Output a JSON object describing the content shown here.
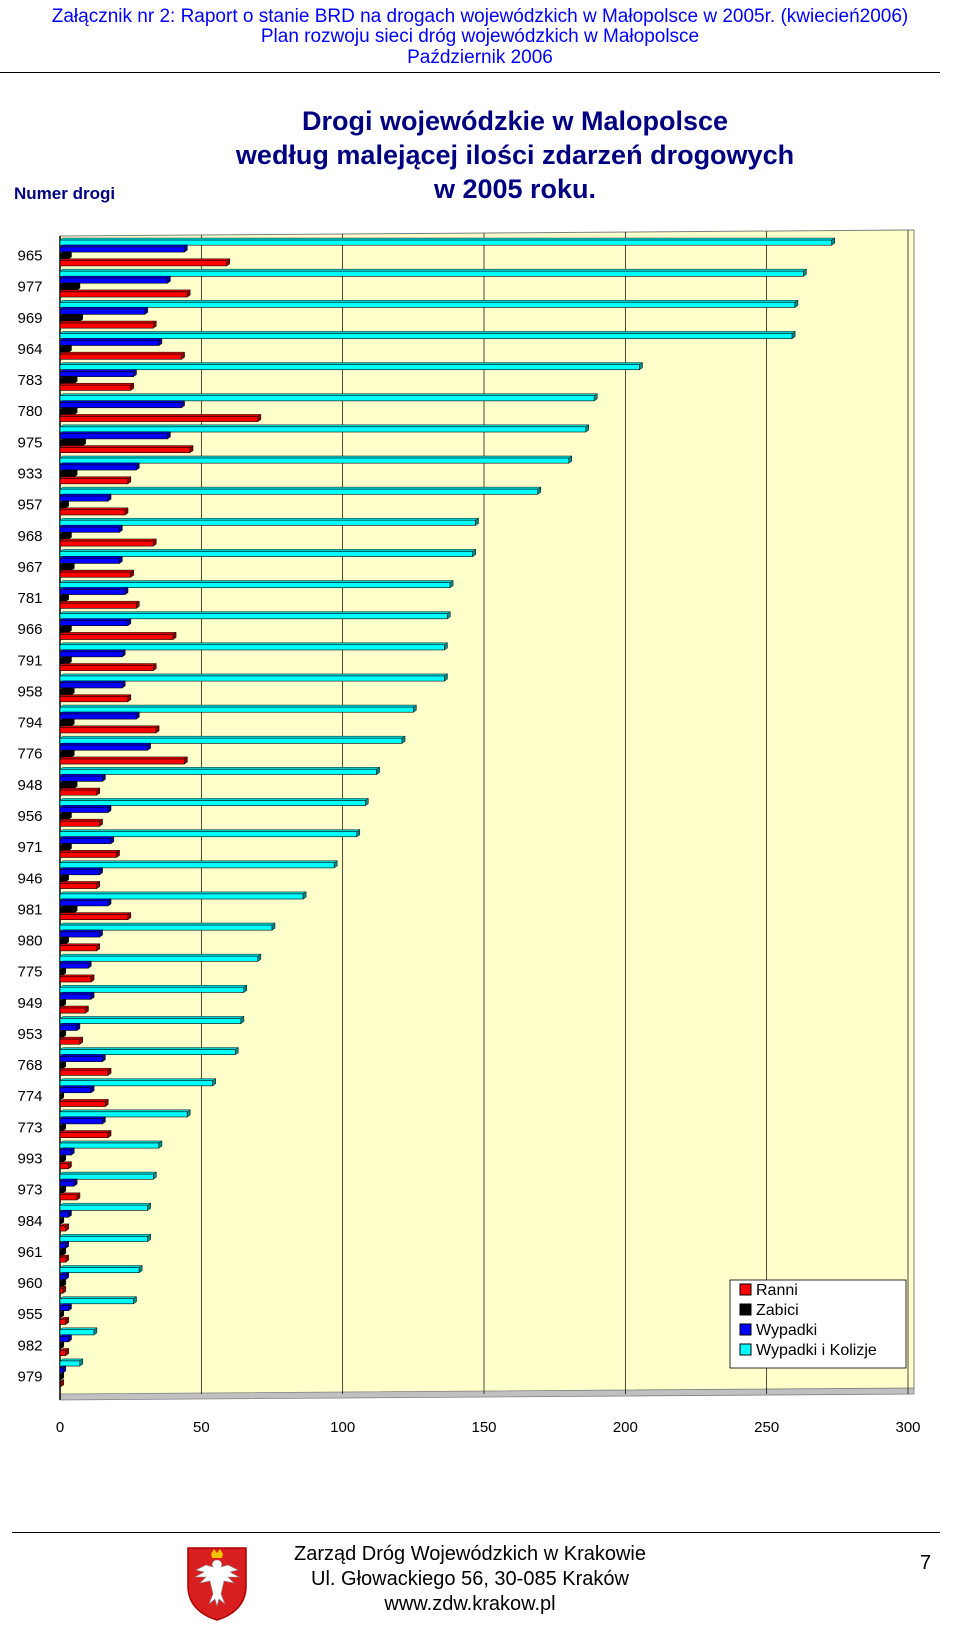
{
  "header": {
    "line1": "Załącznik nr 2: Raport o stanie BRD na drogach wojewódzkich w Małopolsce w 2005r. (kwiecień2006)",
    "line2": "Plan rozwoju sieci dróg wojewódzkich w Małopolsce",
    "line3": "Październik 2006"
  },
  "road_number_label": "Numer drogi",
  "chart_data": {
    "type": "bar",
    "orientation": "horizontal",
    "title": [
      "Drogi wojewódzkie w Malopolsce",
      "według malejącej ilości zdarzeń drogowych",
      "w 2005 roku."
    ],
    "ylabel": "Numer drogi",
    "xlim": [
      0,
      300
    ],
    "xticks": [
      "0",
      "50",
      "100",
      "150",
      "200",
      "250",
      "300"
    ],
    "categories": [
      "965",
      "977",
      "969",
      "964",
      "783",
      "780",
      "975",
      "933",
      "957",
      "968",
      "967",
      "781",
      "966",
      "791",
      "958",
      "794",
      "776",
      "948",
      "956",
      "971",
      "946",
      "981",
      "980",
      "775",
      "949",
      "953",
      "768",
      "774",
      "773",
      "993",
      "973",
      "984",
      "961",
      "960",
      "955",
      "982",
      "979"
    ],
    "series": [
      {
        "name": "Ranni",
        "color": "#ff0000",
        "values": [
          59,
          45,
          33,
          43,
          25,
          70,
          46,
          24,
          23,
          33,
          25,
          27,
          40,
          33,
          24,
          34,
          44,
          13,
          14,
          20,
          13,
          24,
          13,
          11,
          9,
          7,
          17,
          16,
          17,
          3,
          6,
          2,
          2,
          1,
          2,
          2,
          0
        ]
      },
      {
        "name": "Zabici",
        "color": "#000000",
        "values": [
          3,
          6,
          7,
          3,
          5,
          5,
          8,
          5,
          2,
          3,
          4,
          2,
          3,
          3,
          4,
          4,
          4,
          5,
          3,
          3,
          2,
          5,
          2,
          1,
          1,
          1,
          1,
          0,
          1,
          1,
          1,
          0,
          1,
          1,
          0,
          0,
          0
        ]
      },
      {
        "name": "Wypadki",
        "color": "#0000ff",
        "values": [
          44,
          38,
          30,
          35,
          26,
          43,
          38,
          27,
          17,
          21,
          21,
          23,
          24,
          22,
          22,
          27,
          31,
          15,
          17,
          18,
          14,
          17,
          14,
          10,
          11,
          6,
          15,
          11,
          15,
          4,
          5,
          3,
          2,
          2,
          3,
          3,
          1
        ]
      },
      {
        "name": "Wypadki i Kolizje",
        "color": "#00ffff",
        "values": [
          273,
          263,
          260,
          259,
          205,
          189,
          186,
          180,
          169,
          147,
          146,
          138,
          137,
          136,
          136,
          125,
          121,
          112,
          108,
          105,
          97,
          86,
          75,
          70,
          65,
          64,
          62,
          54,
          45,
          35,
          33,
          31,
          31,
          28,
          26,
          12,
          7
        ]
      }
    ],
    "legend": "right"
  },
  "footer": {
    "org": "Zarząd Dróg Wojewódzkich w Krakowie",
    "address": "Ul. Głowackiego 56, 30-085 Kraków",
    "web": "www.zdw.krakow.pl",
    "page": "7"
  }
}
